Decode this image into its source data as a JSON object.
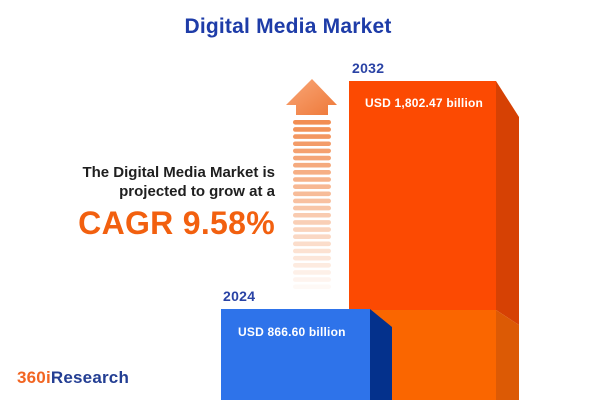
{
  "title": "Digital Media Market",
  "chart": {
    "bars": [
      {
        "year": "2024",
        "value_label": "USD 866.60 billion"
      },
      {
        "year": "2032",
        "value_label": "USD 1,802.47 billion"
      }
    ]
  },
  "annotation": {
    "line1": "The Digital Media Market is",
    "line2": "projected to grow at a",
    "cagr": "CAGR 9.58%"
  },
  "logo": {
    "prefix": "360i",
    "suffix": "Research"
  },
  "colors": {
    "title_blue": "#1E3CA8",
    "year_label_blue": "#2A43A5",
    "annotation_text": "#1F1F1F",
    "cagr_orange": "#F2600F",
    "logo_orange": "#F26522",
    "logo_blue": "#233E93",
    "bar_2024_front": "#2E73EA",
    "bar_2024_side": "#04318C",
    "bar_2032_front_top": "#FC4A02",
    "bar_2032_front_bottom": "#FA6600",
    "bar_2032_side_top": "#D64104",
    "bar_2032_side_bottom": "#DC5A05",
    "arrow_head_light": "#F9A778",
    "arrow_head_dark": "#EE7838",
    "arrow_stripe": "#F1884A"
  },
  "chart_data": {
    "type": "bar",
    "categories": [
      "2024",
      "2032"
    ],
    "values": [
      866.6,
      1802.47
    ],
    "value_labels": [
      "USD 866.60 billion",
      "USD 1,802.47 billion"
    ],
    "unit": "USD billion",
    "title": "Digital Media Market",
    "cagr_percent": 9.58,
    "annotation": "The Digital Media Market is projected to grow at a CAGR 9.58%",
    "series_colors": [
      "#2E73EA",
      "#FC4A02"
    ],
    "bar_style": "3d-extruded",
    "legend": "none",
    "grid": false,
    "axes": "none"
  }
}
